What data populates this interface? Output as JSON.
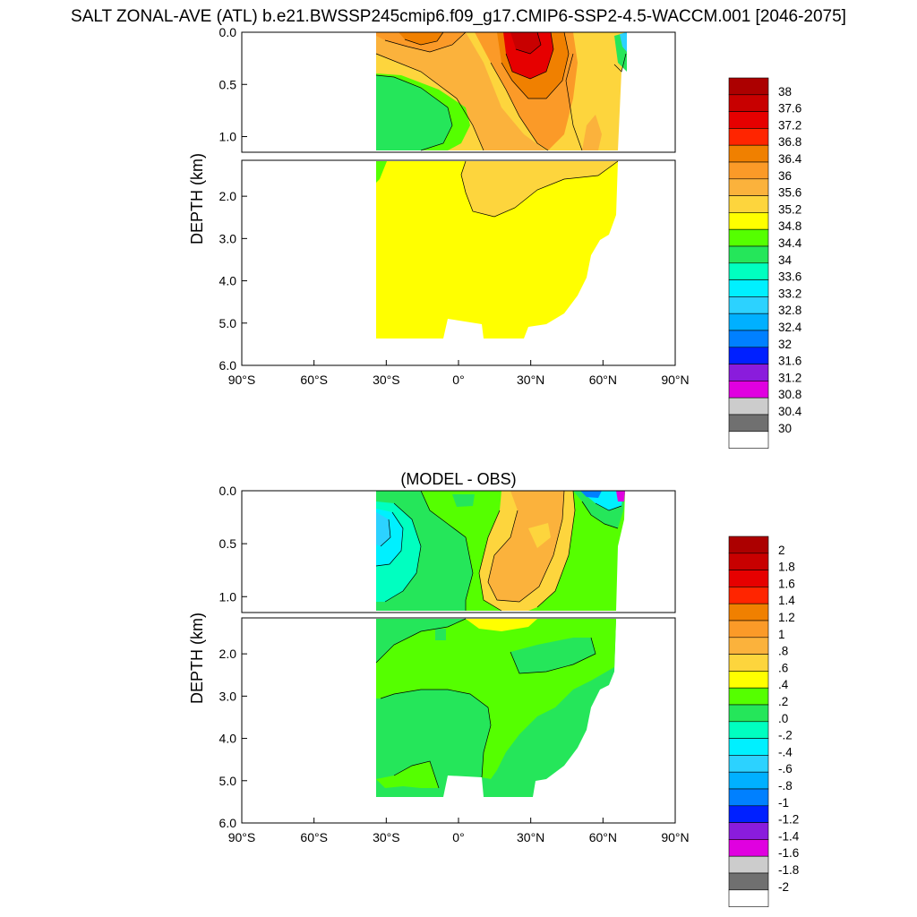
{
  "title": "SALT ZONAL-AVE (ATL) b.e21.BWSSP245cmip6.f09_g17.CMIP6-SSP2-4.5-WACCM.001 [2046-2075]",
  "chart_data": [
    {
      "type": "heatmap",
      "title": "",
      "ylabel": "DEPTH (km)",
      "xlabel": "",
      "x_ticks": [
        "90°S",
        "60°S",
        "30°S",
        "0°",
        "30°N",
        "60°N",
        "90°N"
      ],
      "x_tick_values": [
        -90,
        -60,
        -30,
        0,
        30,
        60,
        90
      ],
      "xlim": [
        -90,
        90
      ],
      "ylim": [
        0,
        6
      ],
      "upper_ticks": [
        "0.0",
        "0.5",
        "1.0"
      ],
      "upper_tick_values": [
        0,
        0.5,
        1.0
      ],
      "lower_ticks": [
        "2.0",
        "3.0",
        "4.0",
        "5.0",
        "6.0"
      ],
      "lower_tick_values": [
        2,
        3,
        4,
        5,
        6
      ],
      "colorbar_labels": [
        "38",
        "37.6",
        "37.2",
        "36.8",
        "36.4",
        "36",
        "35.6",
        "35.2",
        "34.8",
        "34.4",
        "34",
        "33.6",
        "33.2",
        "32.8",
        "32.4",
        "32",
        "31.6",
        "31.2",
        "30.8",
        "30.4",
        "30"
      ],
      "colorbar_colors": [
        "#ac0000",
        "#c80000",
        "#e60000",
        "#ff2500",
        "#f08000",
        "#fb9a28",
        "#fbb23c",
        "#fdd53d",
        "#ffff00",
        "#55ff00",
        "#25e65a",
        "#00ffc0",
        "#00f0ff",
        "#2cd2ff",
        "#00b0ff",
        "#0080ff",
        "#0020ff",
        "#8a1cdc",
        "#e000e0",
        "#cccccc",
        "#707070",
        "#ffffff"
      ],
      "legend": "right"
    },
    {
      "type": "heatmap",
      "title": "(MODEL - OBS)",
      "ylabel": "DEPTH (km)",
      "xlabel": "",
      "x_ticks": [
        "90°S",
        "60°S",
        "30°S",
        "0°",
        "30°N",
        "60°N",
        "90°N"
      ],
      "x_tick_values": [
        -90,
        -60,
        -30,
        0,
        30,
        60,
        90
      ],
      "xlim": [
        -90,
        90
      ],
      "ylim": [
        0,
        6
      ],
      "upper_ticks": [
        "0.0",
        "0.5",
        "1.0"
      ],
      "upper_tick_values": [
        0,
        0.5,
        1.0
      ],
      "lower_ticks": [
        "2.0",
        "3.0",
        "4.0",
        "5.0",
        "6.0"
      ],
      "lower_tick_values": [
        2,
        3,
        4,
        5,
        6
      ],
      "colorbar_labels": [
        "2",
        "1.8",
        "1.6",
        "1.4",
        "1.2",
        "1",
        ".8",
        ".6",
        ".4",
        ".2",
        ".0",
        "-.2",
        "-.4",
        "-.6",
        "-.8",
        "-1",
        "-1.2",
        "-1.4",
        "-1.6",
        "-1.8",
        "-2"
      ],
      "colorbar_colors": [
        "#ac0000",
        "#c80000",
        "#e60000",
        "#ff2500",
        "#f08000",
        "#fb9a28",
        "#fbb23c",
        "#fdd53d",
        "#ffff00",
        "#55ff00",
        "#25e65a",
        "#00ffc0",
        "#00f0ff",
        "#2cd2ff",
        "#00b0ff",
        "#0080ff",
        "#0020ff",
        "#8a1cdc",
        "#e000e0",
        "#cccccc",
        "#707070",
        "#ffffff"
      ],
      "legend": "right"
    }
  ]
}
